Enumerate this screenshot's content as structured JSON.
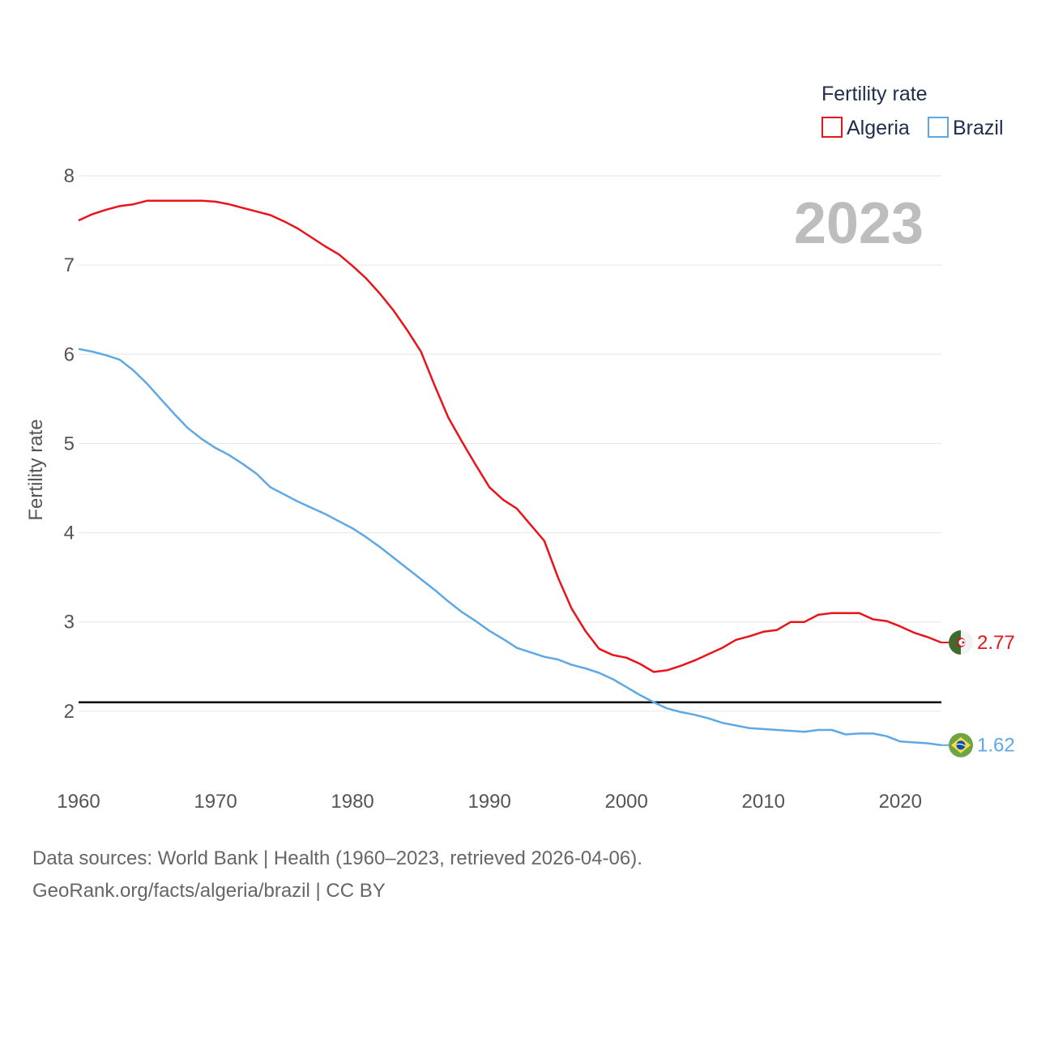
{
  "chart_data": {
    "type": "line",
    "ylabel": "Fertility rate",
    "legend_title": "Fertility rate",
    "year_label": "2023",
    "xlim": [
      1960,
      2023
    ],
    "ylim": [
      1.1,
      8
    ],
    "y_ticks": [
      2,
      3,
      4,
      5,
      6,
      7,
      8
    ],
    "x_ticks": [
      1960,
      1970,
      1980,
      1990,
      2000,
      2010,
      2020
    ],
    "reference_line": 2.1,
    "x": [
      1960,
      1961,
      1962,
      1963,
      1964,
      1965,
      1966,
      1967,
      1968,
      1969,
      1970,
      1971,
      1972,
      1973,
      1974,
      1975,
      1976,
      1977,
      1978,
      1979,
      1980,
      1981,
      1982,
      1983,
      1984,
      1985,
      1986,
      1987,
      1988,
      1989,
      1990,
      1991,
      1992,
      1993,
      1994,
      1995,
      1996,
      1997,
      1998,
      1999,
      2000,
      2001,
      2002,
      2003,
      2004,
      2005,
      2006,
      2007,
      2008,
      2009,
      2010,
      2011,
      2012,
      2013,
      2014,
      2015,
      2016,
      2017,
      2018,
      2019,
      2020,
      2021,
      2022,
      2023
    ],
    "series": [
      {
        "name": "Algeria",
        "color": "#e8141a",
        "end_label": "2.77",
        "values": [
          7.5,
          7.57,
          7.62,
          7.66,
          7.68,
          7.72,
          7.72,
          7.72,
          7.72,
          7.72,
          7.71,
          7.68,
          7.64,
          7.6,
          7.56,
          7.49,
          7.41,
          7.31,
          7.21,
          7.12,
          6.99,
          6.85,
          6.68,
          6.49,
          6.27,
          6.03,
          5.65,
          5.29,
          5.02,
          4.76,
          4.51,
          4.37,
          4.27,
          4.09,
          3.91,
          3.5,
          3.15,
          2.9,
          2.7,
          2.63,
          2.6,
          2.53,
          2.44,
          2.46,
          2.51,
          2.57,
          2.64,
          2.71,
          2.8,
          2.84,
          2.89,
          2.91,
          3.0,
          3.0,
          3.08,
          3.1,
          3.1,
          3.1,
          3.03,
          3.01,
          2.95,
          2.88,
          2.83,
          2.77
        ]
      },
      {
        "name": "Brazil",
        "color": "#5ea8e6",
        "end_label": "1.62",
        "values": [
          6.06,
          6.03,
          5.99,
          5.94,
          5.82,
          5.67,
          5.5,
          5.33,
          5.17,
          5.05,
          4.95,
          4.87,
          4.77,
          4.66,
          4.51,
          4.43,
          4.35,
          4.28,
          4.21,
          4.13,
          4.05,
          3.95,
          3.84,
          3.72,
          3.6,
          3.48,
          3.36,
          3.23,
          3.11,
          3.01,
          2.9,
          2.81,
          2.71,
          2.66,
          2.61,
          2.58,
          2.52,
          2.48,
          2.43,
          2.36,
          2.27,
          2.18,
          2.1,
          2.03,
          1.99,
          1.96,
          1.92,
          1.87,
          1.84,
          1.81,
          1.8,
          1.79,
          1.78,
          1.77,
          1.79,
          1.79,
          1.74,
          1.75,
          1.75,
          1.72,
          1.66,
          1.65,
          1.64,
          1.62
        ]
      }
    ]
  },
  "footer": {
    "line1": "Data sources: World Bank | Health (1960–2023, retrieved 2026-04-06).",
    "line2": "GeoRank.org/facts/algeria/brazil | CC BY"
  }
}
